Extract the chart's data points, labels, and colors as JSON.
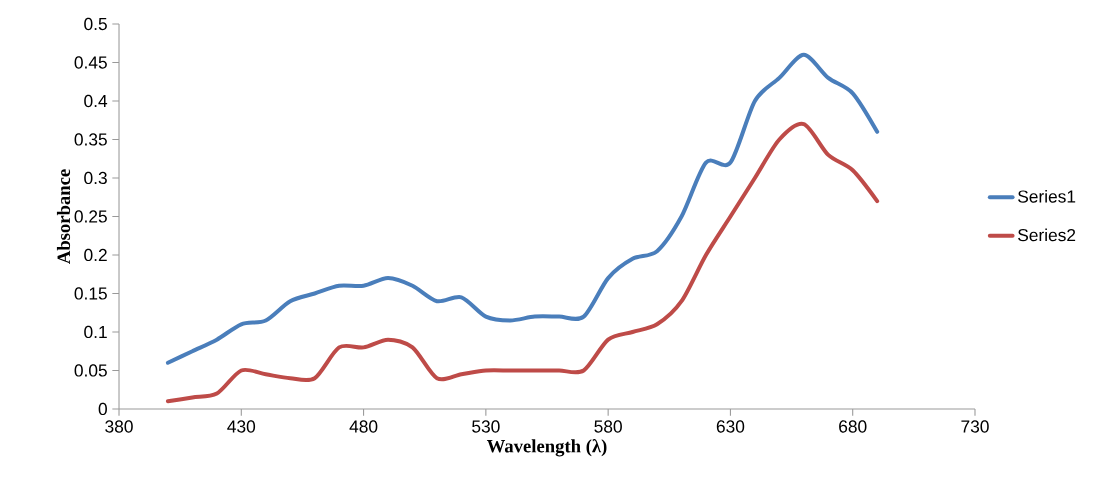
{
  "chart_data": {
    "type": "line",
    "xlabel": "Wavelength (λ)",
    "ylabel": "Absorbance",
    "x": [
      400,
      410,
      420,
      430,
      440,
      450,
      460,
      470,
      480,
      490,
      500,
      510,
      520,
      530,
      540,
      550,
      560,
      570,
      580,
      590,
      600,
      610,
      620,
      630,
      640,
      650,
      660,
      670,
      680,
      690
    ],
    "series": [
      {
        "name": "Series1",
        "color": "#4a7ebb",
        "values": [
          0.06,
          0.075,
          0.09,
          0.11,
          0.115,
          0.14,
          0.15,
          0.16,
          0.16,
          0.17,
          0.16,
          0.14,
          0.145,
          0.12,
          0.115,
          0.12,
          0.12,
          0.12,
          0.17,
          0.195,
          0.205,
          0.25,
          0.32,
          0.32,
          0.4,
          0.43,
          0.46,
          0.43,
          0.41,
          0.36
        ]
      },
      {
        "name": "Series2",
        "color": "#be4b48",
        "values": [
          0.01,
          0.015,
          0.02,
          0.05,
          0.045,
          0.04,
          0.04,
          0.08,
          0.08,
          0.09,
          0.08,
          0.04,
          0.045,
          0.05,
          0.05,
          0.05,
          0.05,
          0.05,
          0.09,
          0.1,
          0.11,
          0.14,
          0.2,
          0.25,
          0.3,
          0.35,
          0.37,
          0.33,
          0.31,
          0.27
        ]
      }
    ],
    "xlim": [
      380,
      730
    ],
    "xticks": [
      380,
      430,
      480,
      530,
      580,
      630,
      680,
      730
    ],
    "ylim": [
      0,
      0.5
    ],
    "yticks": [
      0,
      0.05,
      0.1,
      0.15,
      0.2,
      0.25,
      0.3,
      0.35,
      0.4,
      0.45,
      0.5
    ],
    "legend": "right",
    "grid": false,
    "marker": "none",
    "line_style": "solid"
  }
}
